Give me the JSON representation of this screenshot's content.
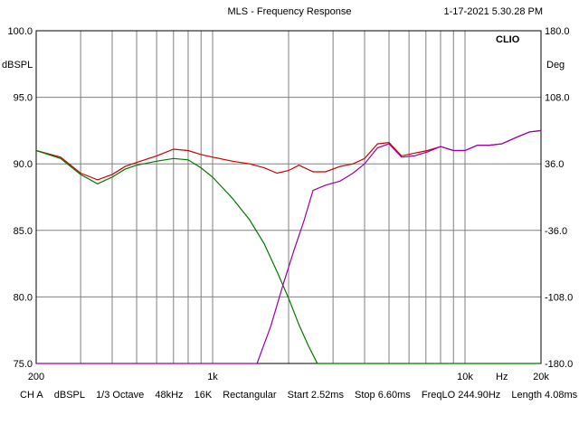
{
  "header": {
    "title": "MLS - Frequency Response",
    "timestamp": "1-17-2021 5.30.28 PM"
  },
  "brand": "CLIO",
  "left_axis": {
    "unit": "dBSPL",
    "ticks": [
      "100.0",
      "95.0",
      "90.0",
      "85.0",
      "80.0",
      "75.0"
    ]
  },
  "right_axis": {
    "unit": "Deg",
    "ticks": [
      "180.0",
      "108.0",
      "36.0",
      "-36.0",
      "-108.0",
      "-180.0"
    ]
  },
  "x_axis": {
    "ticks": [
      "200",
      "1k",
      "10k",
      "Hz",
      "20k"
    ]
  },
  "footer": {
    "items": [
      "CH A",
      "dBSPL",
      "1/3 Octave",
      "48kHz",
      "16K",
      "Rectangular",
      "Start 2.52ms",
      "Stop 6.60ms",
      "FreqLO 244.90Hz",
      "Length 4.08ms"
    ]
  },
  "colors": {
    "grid": "#808080",
    "frame": "#000000",
    "sum": "#cc0000",
    "low": "#007700",
    "high": "#9900aa"
  },
  "chart_data": {
    "type": "line",
    "title": "MLS - Frequency Response",
    "xscale": "log",
    "xlim": [
      200,
      20000
    ],
    "ylim": [
      75,
      100
    ],
    "y2lim": [
      -180,
      180
    ],
    "ylabel": "dBSPL",
    "y2label": "Deg",
    "series": [
      {
        "color": "#cc0000",
        "x": [
          200,
          250,
          300,
          350,
          400,
          450,
          500,
          600,
          700,
          800,
          900,
          1000,
          1200,
          1400,
          1600,
          1800,
          2000,
          2200,
          2500,
          2800,
          3200,
          3600,
          4000,
          4500,
          5000,
          5600,
          6300,
          7100,
          8000,
          9000,
          10000,
          11200,
          12500,
          14000,
          16000,
          18000,
          20000
        ],
        "y": [
          91.0,
          90.5,
          89.3,
          88.8,
          89.2,
          89.8,
          90.1,
          90.6,
          91.1,
          91.0,
          90.7,
          90.5,
          90.2,
          90.0,
          89.7,
          89.3,
          89.5,
          89.9,
          89.4,
          89.4,
          89.8,
          90.0,
          90.4,
          91.5,
          91.6,
          90.6,
          90.8,
          91.0,
          91.3,
          91.0,
          91.0,
          91.4,
          91.4,
          91.5,
          92.0,
          92.4,
          92.5
        ]
      },
      {
        "color": "#007700",
        "x": [
          200,
          250,
          300,
          350,
          400,
          450,
          500,
          600,
          700,
          800,
          900,
          1000,
          1200,
          1400,
          1600,
          1800,
          2000,
          2200,
          2400,
          2600,
          2800,
          20000
        ],
        "y": [
          91.0,
          90.4,
          89.2,
          88.5,
          89.0,
          89.6,
          89.9,
          90.2,
          90.4,
          90.3,
          89.7,
          89.0,
          87.4,
          85.8,
          84.0,
          81.9,
          79.9,
          77.9,
          76.3,
          75.0,
          75.0,
          75.0
        ]
      },
      {
        "color": "#9900aa",
        "x": [
          200,
          1500,
          1700,
          1900,
          2100,
          2300,
          2500,
          2800,
          3200,
          3600,
          4000,
          4500,
          5000,
          5600,
          6300,
          7100,
          8000,
          9000,
          10000,
          11200,
          12500,
          14000,
          16000,
          18000,
          20000
        ],
        "y": [
          75.0,
          75.0,
          77.8,
          80.9,
          83.5,
          85.7,
          88.0,
          88.4,
          88.7,
          89.3,
          90.0,
          91.2,
          91.5,
          90.5,
          90.6,
          90.9,
          91.3,
          91.0,
          91.0,
          91.4,
          91.4,
          91.5,
          92.0,
          92.4,
          92.5
        ]
      }
    ]
  }
}
